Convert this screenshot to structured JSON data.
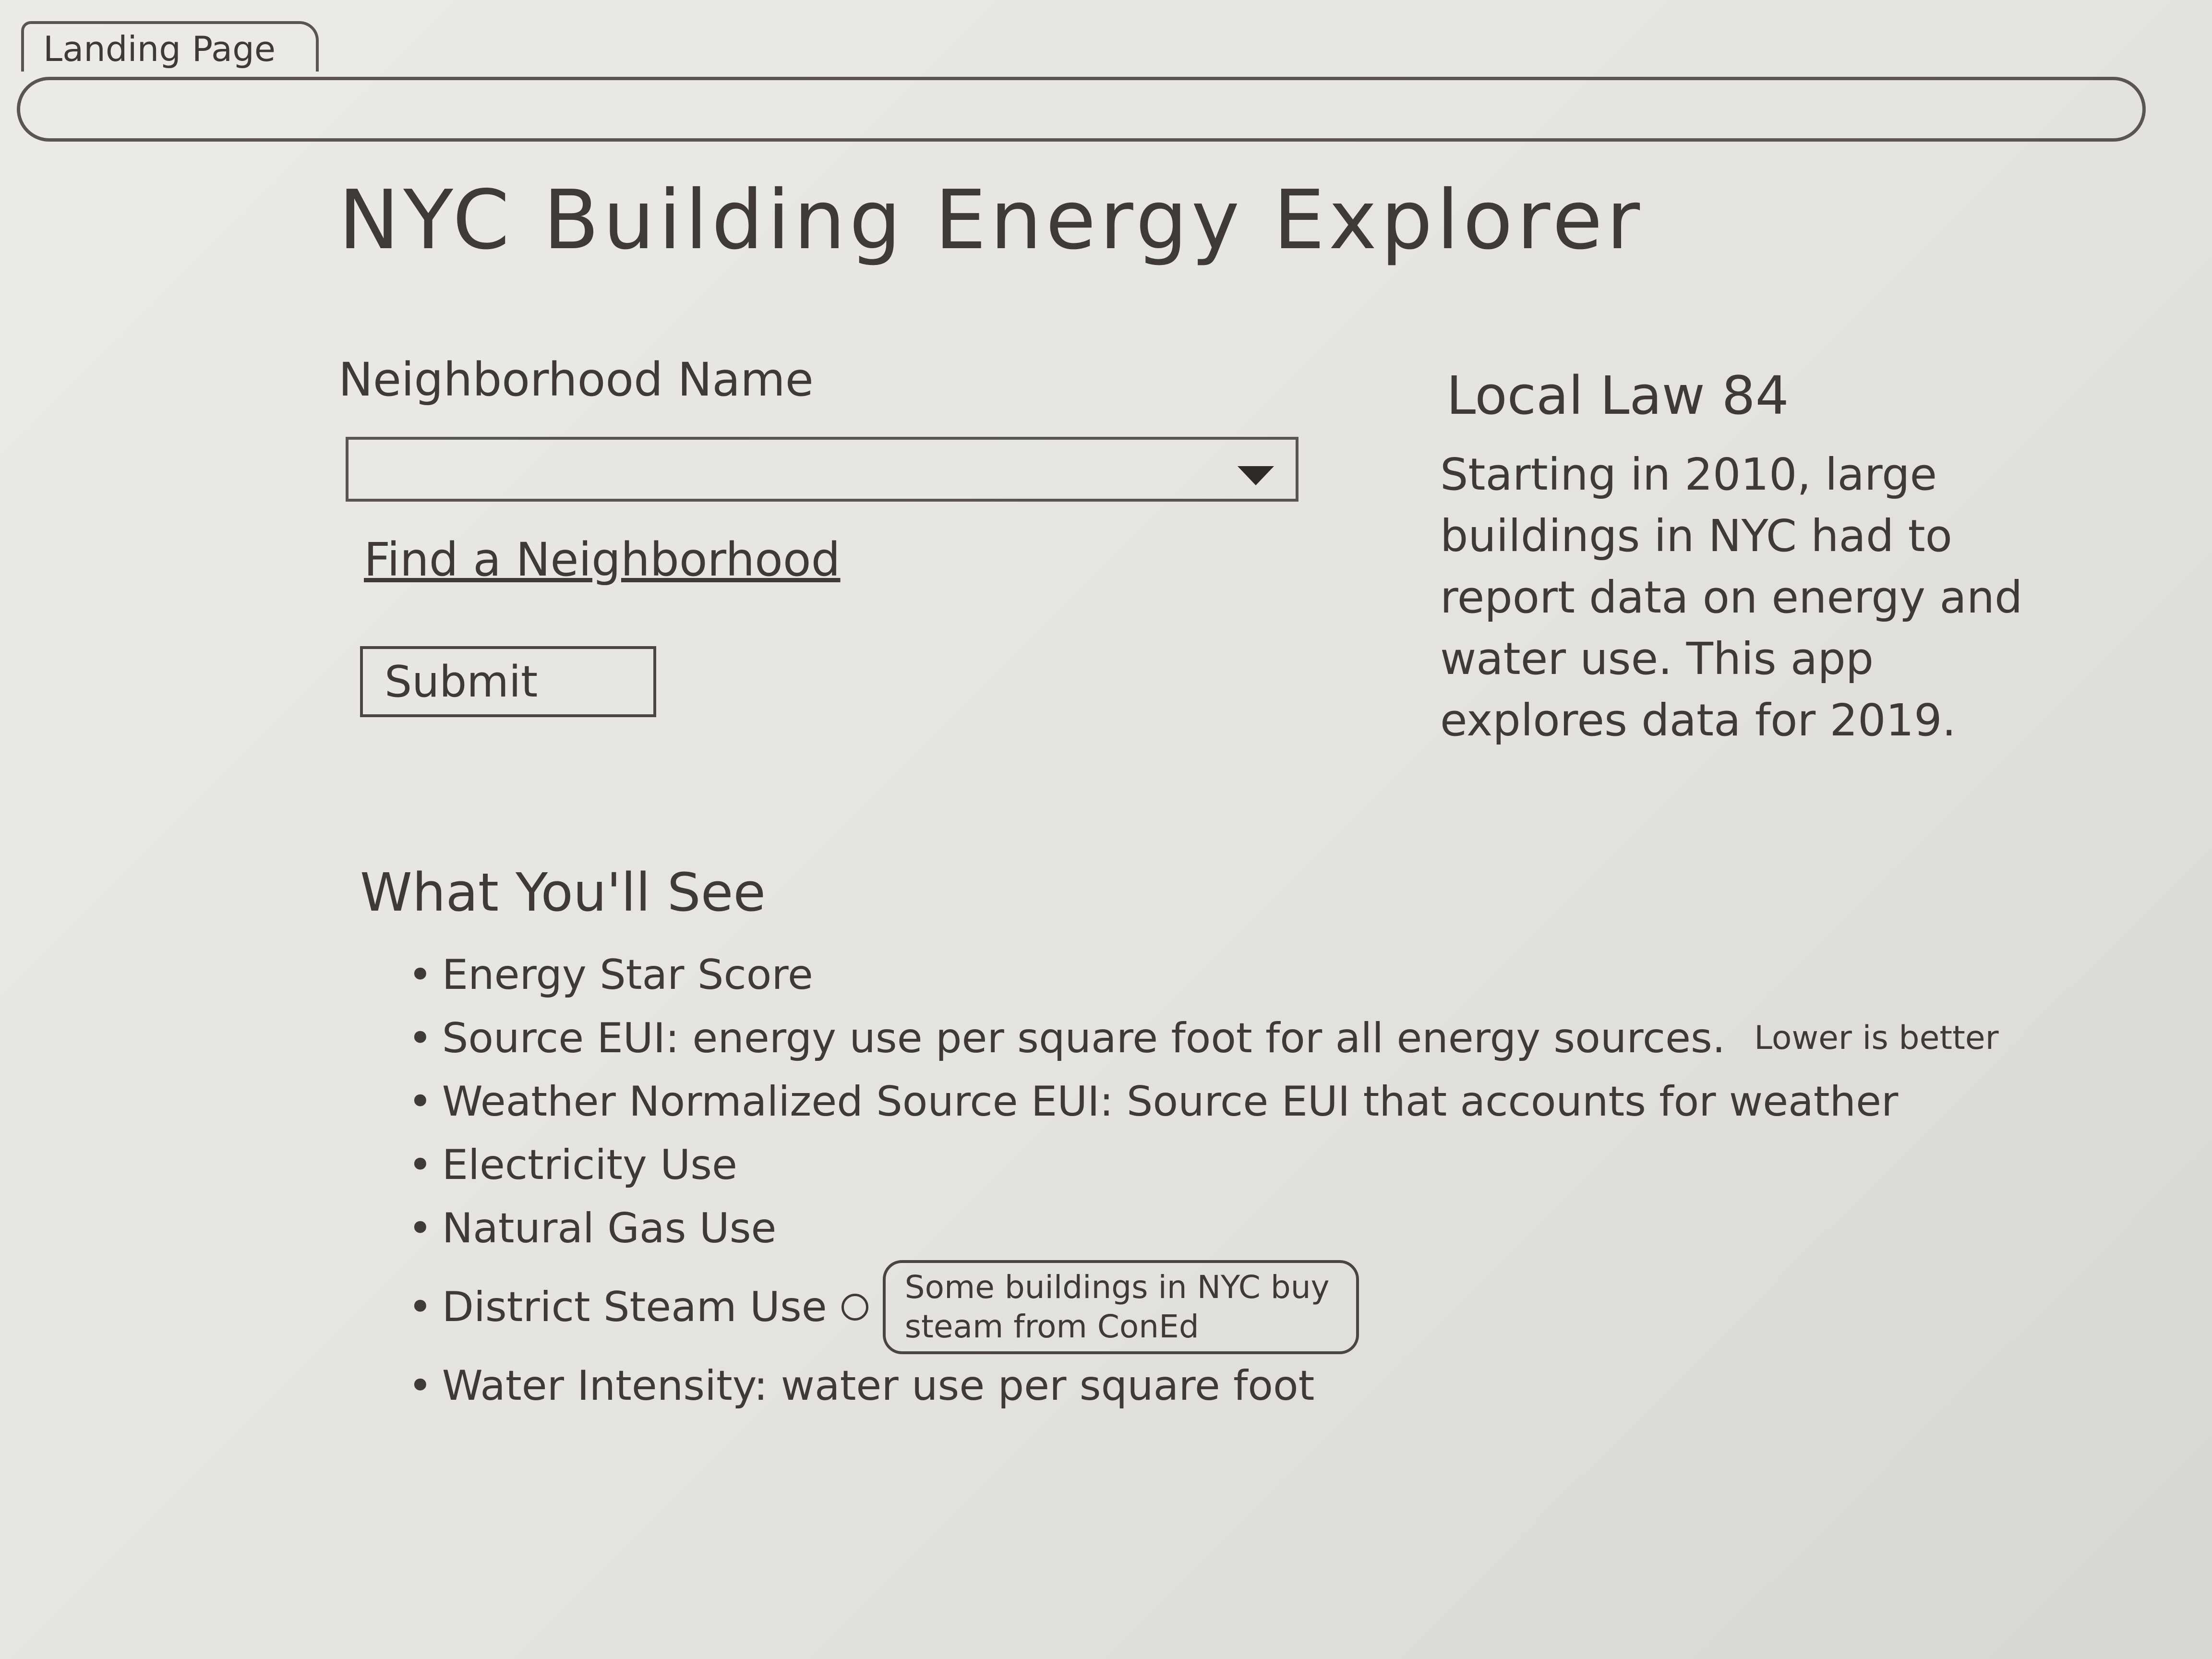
{
  "tab": {
    "label": "Landing Page"
  },
  "header": {
    "title": "NYC Building Energy Explorer"
  },
  "form": {
    "label": "Neighborhood Name",
    "link": "Find a Neighborhood",
    "submit": "Submit"
  },
  "sidebar": {
    "title": "Local Law 84",
    "text": "Starting in 2010, large buildings in NYC had to report data on energy and water use. This app explores data for 2019."
  },
  "features": {
    "title": "What You'll See",
    "items": [
      "Energy Star Score",
      "Source EUI: energy use per square foot for all energy sources.",
      "Weather Normalized Source EUI: Source EUI that accounts for weather",
      "Electricity Use",
      "Natural Gas Use",
      "District Steam Use",
      "Water Intensity: water use per square foot"
    ],
    "source_note": "Lower is better",
    "tooltip": "Some buildings in NYC buy steam from ConEd"
  }
}
